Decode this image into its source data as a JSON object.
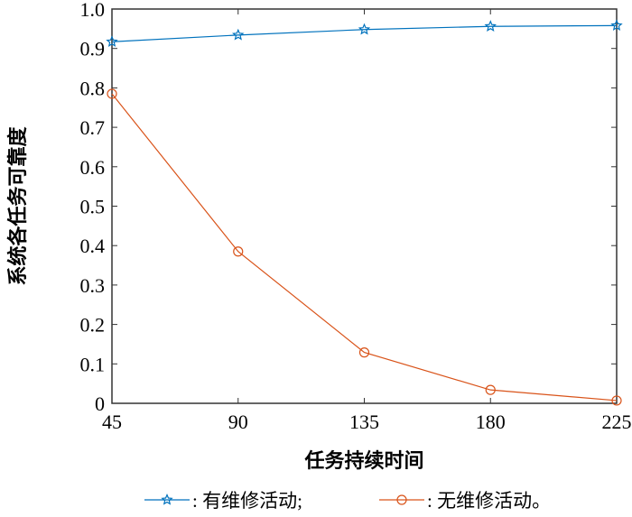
{
  "chart_data": {
    "type": "line",
    "title": "",
    "xlabel": "任务持续时间",
    "ylabel": "系统各任务可靠度",
    "x": [
      45,
      90,
      135,
      180,
      225
    ],
    "xlim": [
      45,
      225
    ],
    "ylim": [
      0,
      1.0
    ],
    "xticks": [
      "45",
      "90",
      "135",
      "180",
      "225"
    ],
    "yticks": [
      "0",
      "0.1",
      "0.2",
      "0.3",
      "0.4",
      "0.5",
      "0.6",
      "0.7",
      "0.8",
      "0.9",
      "1.0"
    ],
    "grid": false,
    "legend_position": "bottom",
    "series": [
      {
        "name": ": 有维修活动;",
        "marker": "star",
        "color": "#0072BD",
        "values": [
          0.917,
          0.934,
          0.948,
          0.956,
          0.958
        ]
      },
      {
        "name": ": 无维修活动。",
        "marker": "circle",
        "color": "#D95319",
        "values": [
          0.785,
          0.385,
          0.129,
          0.034,
          0.007
        ]
      }
    ]
  }
}
